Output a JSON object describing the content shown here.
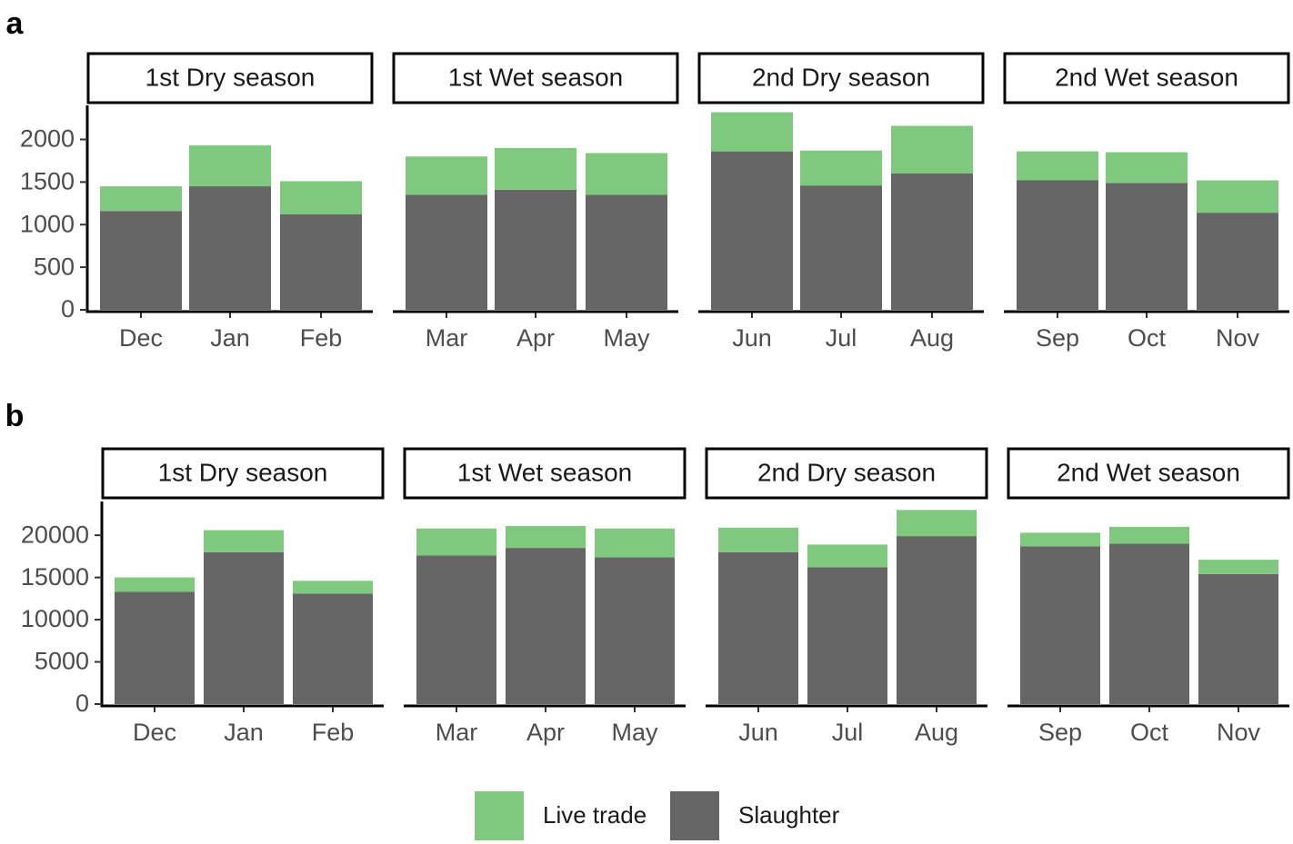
{
  "colors": {
    "live_trade": "#7fc97f",
    "slaughter": "#666666"
  },
  "chart_data": [
    {
      "type": "bar",
      "stacked": true,
      "panel_label": "a",
      "facets": [
        "1st Dry season",
        "1st Wet season",
        "2nd Dry season",
        "2nd Wet season"
      ],
      "categories": [
        [
          "Dec",
          "Jan",
          "Feb"
        ],
        [
          "Mar",
          "Apr",
          "May"
        ],
        [
          "Jun",
          "Jul",
          "Aug"
        ],
        [
          "Sep",
          "Oct",
          "Nov"
        ]
      ],
      "series": [
        {
          "name": "Slaughter",
          "values": [
            [
              1160,
              1450,
              1120
            ],
            [
              1350,
              1410,
              1350
            ],
            [
              1860,
              1460,
              1600
            ],
            [
              1520,
              1490,
              1140
            ]
          ]
        },
        {
          "name": "Live trade",
          "values": [
            [
              290,
              480,
              390
            ],
            [
              450,
              490,
              490
            ],
            [
              460,
              410,
              560
            ],
            [
              340,
              360,
              380
            ]
          ]
        }
      ],
      "yticks": [
        "0",
        "500",
        "1000",
        "1500",
        "2000"
      ],
      "ytick_values": [
        0,
        500,
        1000,
        1500,
        2000
      ],
      "ylim": [
        0,
        2400
      ]
    },
    {
      "type": "bar",
      "stacked": true,
      "panel_label": "b",
      "facets": [
        "1st Dry season",
        "1st Wet season",
        "2nd Dry season",
        "2nd Wet season"
      ],
      "categories": [
        [
          "Dec",
          "Jan",
          "Feb"
        ],
        [
          "Mar",
          "Apr",
          "May"
        ],
        [
          "Jun",
          "Jul",
          "Aug"
        ],
        [
          "Sep",
          "Oct",
          "Nov"
        ]
      ],
      "series": [
        {
          "name": "Slaughter",
          "values": [
            [
              13300,
              18000,
              13100
            ],
            [
              17600,
              18500,
              17400
            ],
            [
              18000,
              16200,
              19900
            ],
            [
              18700,
              19000,
              15400
            ]
          ]
        },
        {
          "name": "Live trade",
          "values": [
            [
              1700,
              2600,
              1500
            ],
            [
              3200,
              2600,
              3400
            ],
            [
              2900,
              2700,
              3100
            ],
            [
              1600,
              2000,
              1700
            ]
          ]
        }
      ],
      "yticks": [
        "0",
        "5000",
        "10000",
        "15000",
        "20000"
      ],
      "ytick_values": [
        0,
        5000,
        10000,
        15000,
        20000
      ],
      "ylim": [
        0,
        24000
      ]
    }
  ],
  "legend": {
    "items": [
      "Live trade",
      "Slaughter"
    ],
    "position": "bottom"
  }
}
